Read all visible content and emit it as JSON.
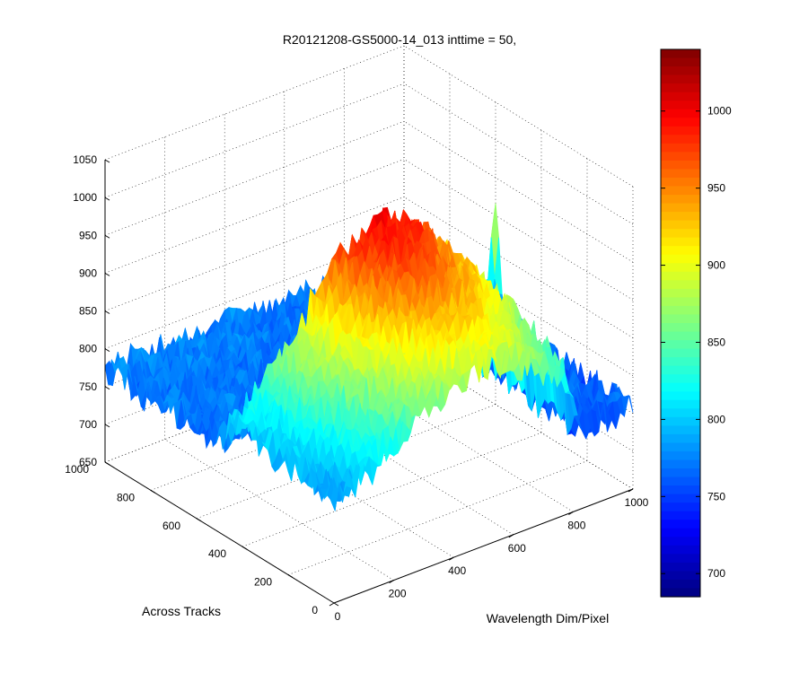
{
  "chart_data": {
    "type": "surface",
    "title": "R20121208-GS5000-14_013 inttime = 50,",
    "xlabel": "Wavelength Dim/Pixel",
    "ylabel": "Across Tracks",
    "zlabel": "",
    "xlim": [
      0,
      1000
    ],
    "ylim": [
      0,
      1000
    ],
    "zlim": [
      650,
      1050
    ],
    "x_ticks": [
      "0",
      "200",
      "400",
      "600",
      "800",
      "1000"
    ],
    "y_ticks": [
      "0",
      "200",
      "400",
      "600",
      "800",
      "1000"
    ],
    "z_ticks": [
      "650",
      "700",
      "750",
      "800",
      "850",
      "900",
      "950",
      "1000",
      "1050"
    ],
    "grid": true,
    "colorbar": {
      "colormap": "jet",
      "range": [
        685,
        1040
      ],
      "ticks": [
        "700",
        "750",
        "800",
        "850",
        "900",
        "950",
        "1000"
      ]
    },
    "surface_model": {
      "background_level": 765,
      "noise_amplitude": 22,
      "illuminated_region": {
        "x_range": [
          0,
          800
        ],
        "y_range": [
          0,
          500
        ]
      },
      "peak_value": 1000,
      "peak_location": {
        "x": 500,
        "y": 480
      },
      "spike": {
        "x": 1000,
        "y": 600,
        "value": 945
      }
    }
  }
}
